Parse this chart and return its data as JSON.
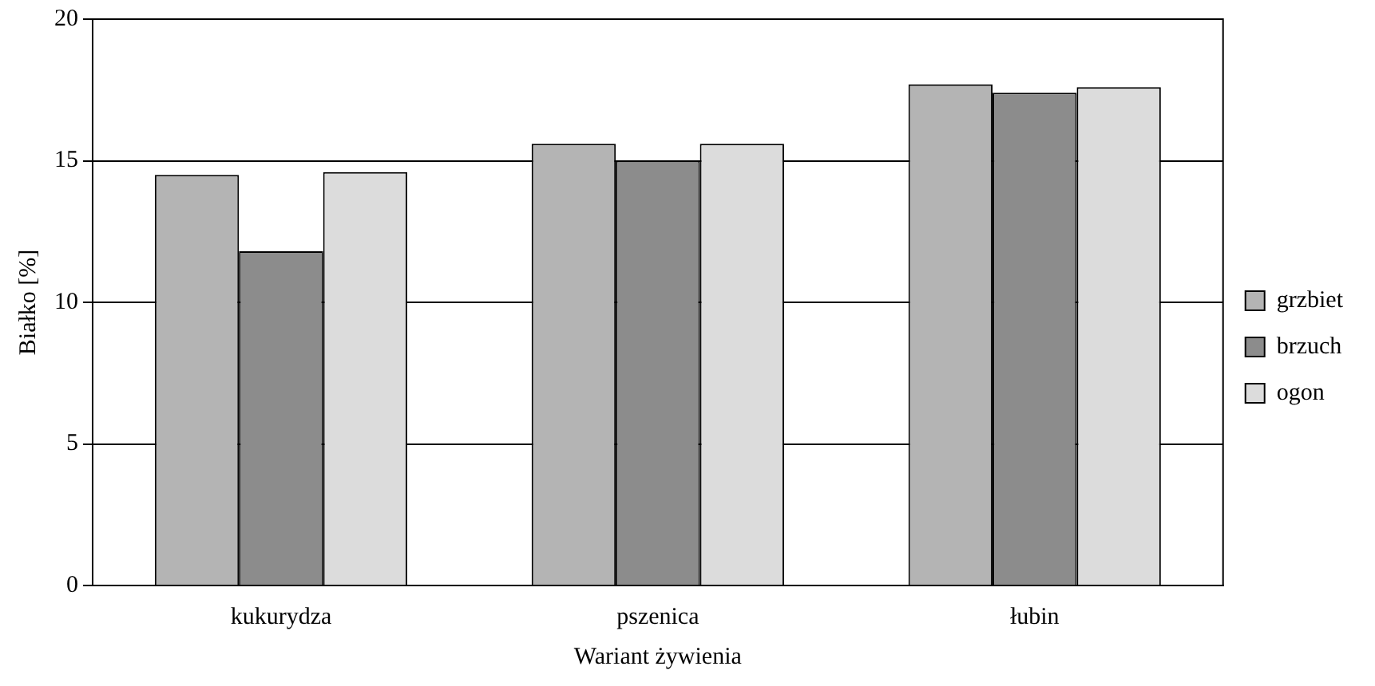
{
  "chart_data": {
    "type": "bar",
    "xlabel": "Wariant żywienia",
    "ylabel": "Białko [%]",
    "categories": [
      "kukurydza",
      "pszenica",
      "łubin"
    ],
    "series": [
      {
        "name": "grzbiet",
        "color": "#b4b4b4",
        "values": [
          14.5,
          15.6,
          17.7
        ]
      },
      {
        "name": "brzuch",
        "color": "#8c8c8c",
        "values": [
          11.8,
          15.0,
          17.4
        ]
      },
      {
        "name": "ogon",
        "color": "#dcdcdc",
        "values": [
          14.6,
          15.6,
          17.6
        ]
      }
    ],
    "ylim": [
      0,
      20
    ],
    "yticks": [
      0,
      5,
      10,
      15,
      20
    ],
    "grid": "y",
    "legend": "right"
  }
}
